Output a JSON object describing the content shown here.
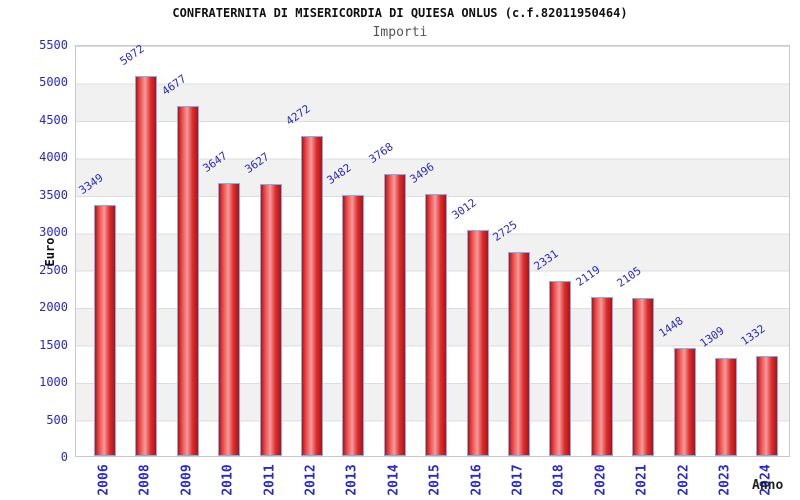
{
  "chart_data": {
    "type": "bar",
    "title": "CONFRATERNITA DI MISERICORDIA DI QUIESA ONLUS (c.f.82011950464)",
    "subtitle": "Importi",
    "xlabel": "Anno",
    "ylabel": "Euro",
    "categories": [
      "2006",
      "2008",
      "2009",
      "2010",
      "2011",
      "2012",
      "2013",
      "2014",
      "2015",
      "2016",
      "2017",
      "2018",
      "2020",
      "2021",
      "2022",
      "2023",
      "2024"
    ],
    "values": [
      3349,
      5072,
      4677,
      3647,
      3627,
      4272,
      3482,
      3768,
      3496,
      3012,
      2725,
      2331,
      2119,
      2105,
      1448,
      1309,
      1332
    ],
    "ylim": [
      0,
      5500
    ],
    "ytick_step": 500,
    "legend": "none",
    "grid": "alternating-horizontal-bands",
    "colors": {
      "bar_fill_main": "#dd2f2f",
      "bar_fill_light": "#f59b9b",
      "bar_fill_dark": "#b01212",
      "bar_border": "#7fb0ec",
      "tick_text": "#2a2ac0",
      "band_gray": "#f1f1f1",
      "plot_border": "#c9c9c9",
      "subtitle_text": "#555555",
      "axis_title_text": "#222222"
    }
  }
}
